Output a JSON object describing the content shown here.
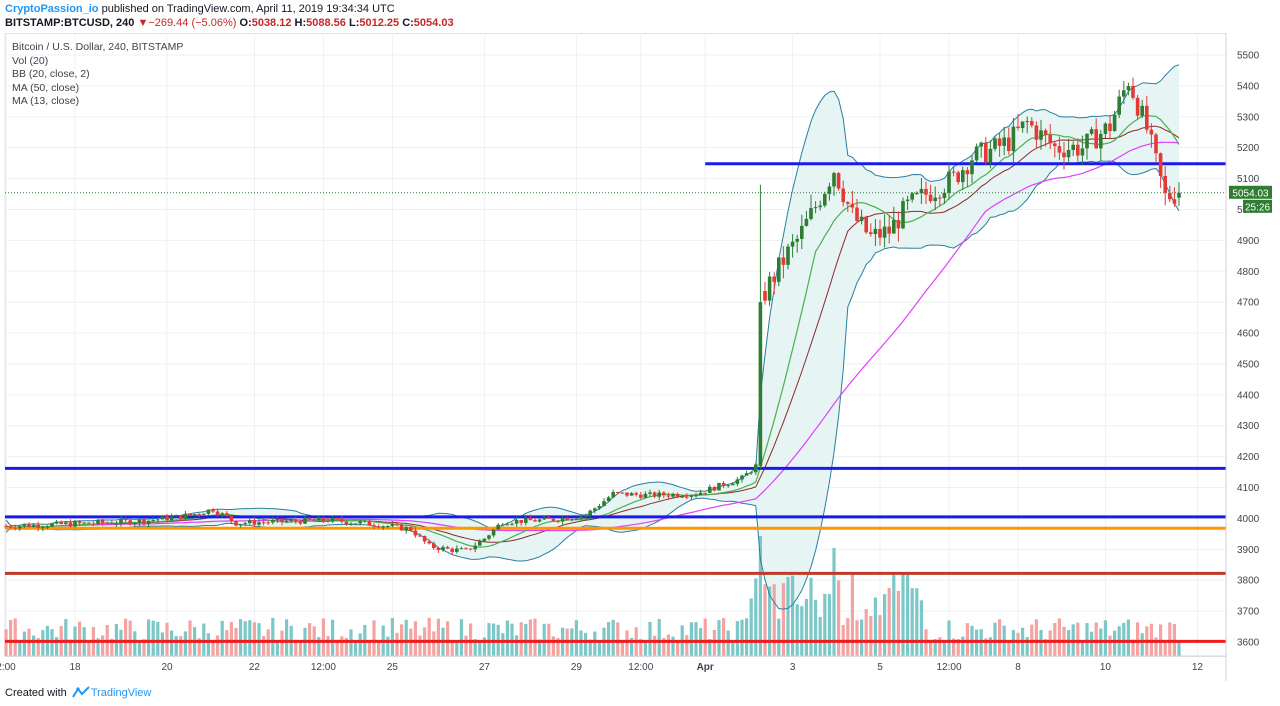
{
  "header": {
    "author": "CryptoPassion_io",
    "published": "published on TradingView.com, April 11, 2019 19:34:34 UTC",
    "symbol": "BITSTAMP:BTCUSD, 240",
    "change_arrow": "▼",
    "change": "−269.44 (−5.06%)",
    "o_label": "O:",
    "o_value": "5038.12",
    "h_label": "H:",
    "h_value": "5088.56",
    "l_label": "L:",
    "l_value": "5012.25",
    "c_label": "C:",
    "c_value": "5054.03"
  },
  "legend": {
    "title": "Bitcoin / U.S. Dollar, 240, BITSTAMP",
    "vol": "Vol (20)",
    "bb": "BB (20, close, 2)",
    "ma50": "MA (50, close)",
    "ma13": "MA (13, close)"
  },
  "footer": {
    "created_with": "Created with",
    "brand": "TradingView"
  },
  "chart_data": {
    "type": "candlestick",
    "title": "Bitcoin / U.S. Dollar, 240, BITSTAMP",
    "ylim": [
      3550,
      5550
    ],
    "y_ticks": [
      3600,
      3700,
      3800,
      3900,
      4000,
      4100,
      4200,
      4300,
      4400,
      4500,
      4600,
      4700,
      4800,
      4900,
      5000,
      5100,
      5200,
      5300,
      5400,
      5500
    ],
    "x_ticks": [
      "2:00",
      "18",
      "20",
      "22",
      "12:00",
      "25",
      "27",
      "29",
      "12:00",
      "Apr",
      "3",
      "5",
      "12:00",
      "8",
      "10",
      "12"
    ],
    "x_tick_bars": [
      0,
      15,
      35,
      54,
      69,
      84,
      104,
      124,
      138,
      152,
      171,
      190,
      205,
      220,
      239,
      259
    ],
    "last_price": "5054.03",
    "countdown": "25:26",
    "series_points": [
      [
        0,
        3975
      ],
      [
        10,
        3980
      ],
      [
        20,
        3985
      ],
      [
        30,
        3992
      ],
      [
        40,
        4010
      ],
      [
        45,
        4030
      ],
      [
        50,
        3985
      ],
      [
        60,
        3990
      ],
      [
        70,
        3995
      ],
      [
        80,
        3982
      ],
      [
        88,
        3965
      ],
      [
        92,
        3910
      ],
      [
        96,
        3900
      ],
      [
        100,
        3895
      ],
      [
        104,
        3935
      ],
      [
        108,
        3990
      ],
      [
        118,
        3995
      ],
      [
        126,
        4010
      ],
      [
        132,
        4080
      ],
      [
        140,
        4075
      ],
      [
        150,
        4080
      ],
      [
        160,
        4130
      ],
      [
        163,
        4170
      ],
      [
        164,
        4700
      ],
      [
        166,
        4760
      ],
      [
        170,
        4860
      ],
      [
        172,
        4900
      ],
      [
        176,
        5010
      ],
      [
        180,
        5130
      ],
      [
        184,
        4980
      ],
      [
        188,
        4910
      ],
      [
        192,
        4930
      ],
      [
        196,
        5010
      ],
      [
        200,
        5050
      ],
      [
        206,
        5100
      ],
      [
        210,
        5170
      ],
      [
        214,
        5190
      ],
      [
        218,
        5220
      ],
      [
        222,
        5280
      ],
      [
        228,
        5200
      ],
      [
        234,
        5200
      ],
      [
        240,
        5270
      ],
      [
        244,
        5420
      ],
      [
        248,
        5260
      ],
      [
        252,
        5040
      ],
      [
        255,
        5054
      ]
    ],
    "support_resistance": [
      {
        "level": 5148,
        "color": "#1a1aee",
        "start_bar": 152
      },
      {
        "level": 4162,
        "color": "#1a1aee",
        "start_bar": 0
      },
      {
        "level": 4005,
        "color": "#1a1aee",
        "start_bar": 0
      },
      {
        "level": 3968,
        "color": "#ff9800",
        "start_bar": 0
      },
      {
        "level": 3822,
        "color": "#c0392b",
        "start_bar": 0
      },
      {
        "level": 3602,
        "color": "#ee1c1c",
        "start_bar": 0
      }
    ],
    "colors": {
      "up": "#2e7d32",
      "down": "#e53935",
      "ma13": "#4caf50",
      "ma50": "#e040fb",
      "bb_basis": "#8b2a2a",
      "bb_band": "#2a7f9e",
      "bb_fill": "#e6f4f4",
      "vol_up": "#7cc7c7",
      "vol_down": "#f4a3a3",
      "grid": "#edf0f3",
      "price_tag": "#2e7d32"
    }
  }
}
